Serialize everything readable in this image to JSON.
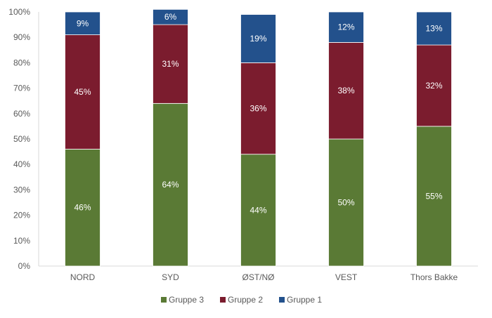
{
  "chart_data": {
    "type": "bar",
    "stacked": true,
    "categories": [
      "NORD",
      "SYD",
      "ØST/NØ",
      "VEST",
      "Thors Bakke"
    ],
    "series": [
      {
        "name": "Gruppe 3",
        "color": "#5a7a35",
        "values": [
          46,
          64,
          44,
          50,
          55
        ],
        "labels": [
          "46%",
          "64%",
          "44%",
          "50%",
          "55%"
        ]
      },
      {
        "name": "Gruppe 2",
        "color": "#7b1c2e",
        "values": [
          45,
          31,
          36,
          38,
          32
        ],
        "labels": [
          "45%",
          "31%",
          "36%",
          "38%",
          "32%"
        ]
      },
      {
        "name": "Gruppe 1",
        "color": "#23518c",
        "values": [
          9,
          6,
          19,
          12,
          13
        ],
        "labels": [
          "9%",
          "6%",
          "19%",
          "12%",
          "13%"
        ]
      }
    ],
    "y_ticks": [
      "0%",
      "10%",
      "20%",
      "30%",
      "40%",
      "50%",
      "60%",
      "70%",
      "80%",
      "90%",
      "100%"
    ],
    "ylim": [
      0,
      100
    ],
    "grid": false,
    "legend_position": "bottom",
    "title": "",
    "xlabel": "",
    "ylabel": ""
  }
}
